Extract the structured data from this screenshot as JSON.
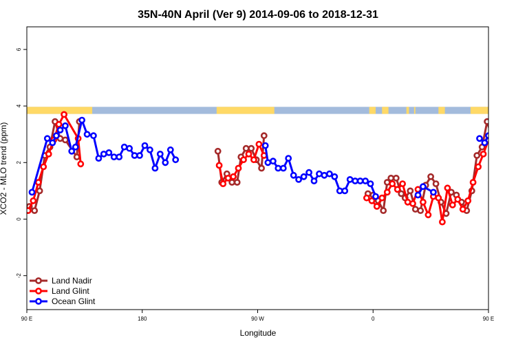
{
  "chart_data": {
    "type": "line",
    "title": "35N-40N April (Ver 9)   2014-09-06 to 2018-12-31",
    "xlabel": "Longitude",
    "ylabel": "XCO2 - MLO trend (ppm)",
    "xlim": [
      90,
      450
    ],
    "ylim": [
      -3.2,
      6.8
    ],
    "x_ticks": [
      {
        "value": 90,
        "label": "90 E"
      },
      {
        "value": 180,
        "label": "180"
      },
      {
        "value": 270,
        "label": "90 W"
      },
      {
        "value": 360,
        "label": "0"
      },
      {
        "value": 450,
        "label": "90 E"
      },
      {
        "value": 540,
        "label": "180"
      }
    ],
    "y_ticks": [
      {
        "value": -2,
        "label": "-2"
      },
      {
        "value": 0,
        "label": "0"
      },
      {
        "value": 2,
        "label": "2"
      },
      {
        "value": 4,
        "label": "4"
      },
      {
        "value": 6,
        "label": "6"
      }
    ],
    "grid": false,
    "legend_position": "bottom-left",
    "land_mask_band": {
      "y_range": [
        3.72,
        3.97
      ],
      "land_color": "#ffd966",
      "ocean_color": "#a3bbdc",
      "land_segments": [
        [
          90,
          141
        ],
        [
          238,
          283
        ],
        [
          357,
          362
        ],
        [
          367,
          372
        ],
        [
          386,
          388
        ],
        [
          392,
          393
        ],
        [
          411,
          416
        ],
        [
          436,
          505
        ]
      ]
    },
    "series": [
      {
        "name": "Land Nadir",
        "color": "#a52a2a",
        "points": [
          [
            92,
            0.45
          ],
          [
            96,
            0.3
          ],
          [
            100,
            1.0
          ],
          [
            104,
            2.25
          ],
          [
            108,
            2.55
          ],
          [
            112,
            3.45
          ],
          [
            116,
            2.85
          ],
          [
            120,
            2.8
          ],
          [
            129,
            2.2
          ],
          [
            131,
            3.45
          ],
          [
            239,
            2.4
          ],
          [
            242,
            1.3
          ],
          [
            246,
            1.6
          ],
          [
            250,
            1.3
          ],
          [
            254,
            1.3
          ],
          [
            257,
            2.2
          ],
          [
            261,
            2.5
          ],
          [
            265,
            2.5
          ],
          [
            269,
            2.1
          ],
          [
            273,
            1.8
          ],
          [
            275,
            2.95
          ],
          [
            356,
            0.9
          ],
          [
            360,
            0.85
          ],
          [
            364,
            0.65
          ],
          [
            368,
            0.3
          ],
          [
            371,
            1.3
          ],
          [
            374,
            1.45
          ],
          [
            378,
            1.45
          ],
          [
            382,
            0.9
          ],
          [
            385,
            0.75
          ],
          [
            389,
            1.0
          ],
          [
            393,
            0.35
          ],
          [
            397,
            0.3
          ],
          [
            401,
            1.2
          ],
          [
            405,
            1.5
          ],
          [
            409,
            1.25
          ],
          [
            413,
            0.6
          ],
          [
            417,
            0.2
          ],
          [
            421,
            0.95
          ],
          [
            425,
            0.85
          ],
          [
            429,
            0.6
          ],
          [
            433,
            0.3
          ],
          [
            437,
            1.0
          ],
          [
            441,
            2.25
          ],
          [
            445,
            2.55
          ],
          [
            449,
            3.45
          ],
          [
            453,
            2.85
          ],
          [
            457,
            2.8
          ],
          [
            466,
            2.2
          ],
          [
            468,
            3.45
          ]
        ]
      },
      {
        "name": "Land Glint",
        "color": "#ff0000",
        "points": [
          [
            91,
            0.3
          ],
          [
            95,
            0.65
          ],
          [
            99,
            1.3
          ],
          [
            103,
            1.85
          ],
          [
            107,
            2.3
          ],
          [
            111,
            2.8
          ],
          [
            115,
            3.35
          ],
          [
            119,
            3.7
          ],
          [
            130,
            2.85
          ],
          [
            132,
            1.95
          ],
          [
            240,
            1.9
          ],
          [
            243,
            1.25
          ],
          [
            247,
            1.45
          ],
          [
            251,
            1.5
          ],
          [
            255,
            1.8
          ],
          [
            259,
            2.1
          ],
          [
            263,
            2.3
          ],
          [
            267,
            2.1
          ],
          [
            271,
            2.65
          ],
          [
            275,
            2.25
          ],
          [
            355,
            0.75
          ],
          [
            359,
            0.65
          ],
          [
            363,
            0.45
          ],
          [
            367,
            0.75
          ],
          [
            371,
            0.95
          ],
          [
            375,
            1.25
          ],
          [
            379,
            1.05
          ],
          [
            383,
            1.25
          ],
          [
            387,
            0.6
          ],
          [
            391,
            0.55
          ],
          [
            395,
            1.05
          ],
          [
            399,
            0.6
          ],
          [
            403,
            0.15
          ],
          [
            407,
            0.8
          ],
          [
            411,
            0.75
          ],
          [
            414,
            -0.1
          ],
          [
            418,
            1.1
          ],
          [
            422,
            0.5
          ],
          [
            426,
            0.7
          ],
          [
            430,
            0.35
          ],
          [
            434,
            0.65
          ],
          [
            438,
            1.3
          ],
          [
            442,
            1.85
          ],
          [
            446,
            2.3
          ],
          [
            450,
            2.8
          ],
          [
            454,
            3.35
          ],
          [
            458,
            3.7
          ],
          [
            467,
            2.85
          ],
          [
            469,
            1.95
          ]
        ]
      },
      {
        "name": "Ocean Glint",
        "color": "#0000ff",
        "points": [
          [
            94,
            0.95
          ],
          [
            106,
            2.85
          ],
          [
            110,
            2.7
          ],
          [
            113,
            2.95
          ],
          [
            116,
            3.15
          ],
          [
            120,
            3.3
          ],
          [
            125,
            2.4
          ],
          [
            128,
            2.55
          ],
          [
            133,
            3.5
          ],
          [
            137,
            3.0
          ],
          [
            142,
            2.95
          ],
          [
            146,
            2.15
          ],
          [
            150,
            2.3
          ],
          [
            154,
            2.35
          ],
          [
            158,
            2.2
          ],
          [
            162,
            2.2
          ],
          [
            166,
            2.55
          ],
          [
            170,
            2.5
          ],
          [
            174,
            2.25
          ],
          [
            178,
            2.25
          ],
          [
            182,
            2.6
          ],
          [
            186,
            2.45
          ],
          [
            190,
            1.8
          ],
          [
            194,
            2.3
          ],
          [
            198,
            2.0
          ],
          [
            202,
            2.45
          ],
          [
            206,
            2.1
          ],
          [
            276,
            2.6
          ],
          [
            278,
            2.0
          ],
          [
            282,
            2.05
          ],
          [
            286,
            1.8
          ],
          [
            290,
            1.8
          ],
          [
            294,
            2.15
          ],
          [
            298,
            1.55
          ],
          [
            302,
            1.4
          ],
          [
            306,
            1.5
          ],
          [
            310,
            1.65
          ],
          [
            314,
            1.35
          ],
          [
            318,
            1.6
          ],
          [
            322,
            1.55
          ],
          [
            326,
            1.6
          ],
          [
            330,
            1.5
          ],
          [
            334,
            1.0
          ],
          [
            338,
            1.0
          ],
          [
            342,
            1.4
          ],
          [
            346,
            1.35
          ],
          [
            350,
            1.35
          ],
          [
            354,
            1.35
          ],
          [
            358,
            1.25
          ],
          [
            362,
            0.8
          ],
          [
            395,
            0.85
          ],
          [
            399,
            1.15
          ],
          [
            407,
            0.95
          ],
          [
            443,
            2.85
          ],
          [
            447,
            2.7
          ],
          [
            450,
            2.95
          ],
          [
            453,
            3.15
          ],
          [
            457,
            3.3
          ],
          [
            462,
            2.4
          ],
          [
            465,
            2.55
          ],
          [
            470,
            3.5
          ],
          [
            474,
            3.0
          ],
          [
            479,
            2.95
          ],
          [
            483,
            2.15
          ],
          [
            487,
            2.3
          ],
          [
            491,
            2.35
          ],
          [
            495,
            2.2
          ],
          [
            499,
            2.2
          ]
        ]
      }
    ]
  }
}
